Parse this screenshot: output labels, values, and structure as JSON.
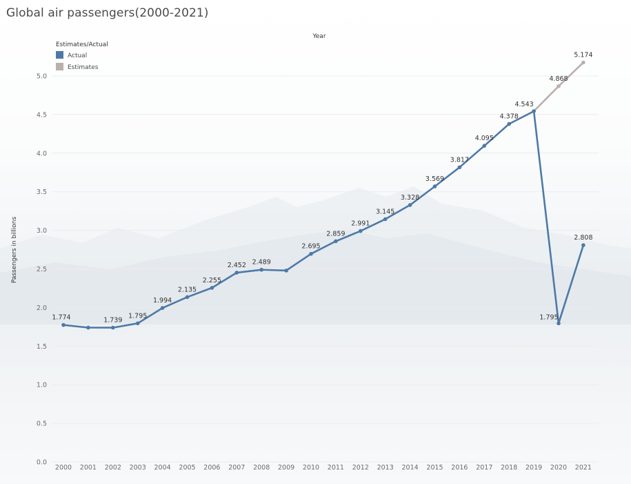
{
  "title": "Global air passengers(2000-2021)",
  "chart_data": {
    "type": "line",
    "title": "Global air passengers(2000-2021)",
    "xlabel": "Year",
    "ylabel": "Passengers in billions",
    "ylim": [
      0,
      5.3
    ],
    "yticks": [
      "0.0",
      "0.5",
      "1.0",
      "1.5",
      "2.0",
      "2.5",
      "3.0",
      "3.5",
      "4.0",
      "4.5",
      "5.0"
    ],
    "grid": true,
    "x": [
      "2000",
      "2001",
      "2002",
      "2003",
      "2004",
      "2005",
      "2006",
      "2007",
      "2008",
      "2009",
      "2010",
      "2011",
      "2012",
      "2013",
      "2014",
      "2015",
      "2016",
      "2017",
      "2018",
      "2019",
      "2020",
      "2021"
    ],
    "legend": {
      "title": "Estimates/Actual",
      "position": "top-left",
      "entries": [
        {
          "label": "Actual",
          "color": "#4e79a7"
        },
        {
          "label": "Estimates",
          "color": "#bab0ac"
        }
      ]
    },
    "series": [
      {
        "name": "Actual",
        "color": "#4e79a7",
        "points": [
          {
            "x": "2000",
            "y": 1.774,
            "label": "1.774"
          },
          {
            "x": "2001",
            "y": 1.74,
            "label": ""
          },
          {
            "x": "2002",
            "y": 1.739,
            "label": "1.739"
          },
          {
            "x": "2003",
            "y": 1.795,
            "label": "1.795"
          },
          {
            "x": "2004",
            "y": 1.994,
            "label": "1.994"
          },
          {
            "x": "2005",
            "y": 2.135,
            "label": "2.135"
          },
          {
            "x": "2006",
            "y": 2.255,
            "label": "2.255"
          },
          {
            "x": "2007",
            "y": 2.452,
            "label": "2.452"
          },
          {
            "x": "2008",
            "y": 2.489,
            "label": "2.489"
          },
          {
            "x": "2009",
            "y": 2.479,
            "label": ""
          },
          {
            "x": "2010",
            "y": 2.695,
            "label": "2.695"
          },
          {
            "x": "2011",
            "y": 2.859,
            "label": "2.859"
          },
          {
            "x": "2012",
            "y": 2.991,
            "label": "2.991"
          },
          {
            "x": "2013",
            "y": 3.145,
            "label": "3.145"
          },
          {
            "x": "2014",
            "y": 3.328,
            "label": "3.328"
          },
          {
            "x": "2015",
            "y": 3.569,
            "label": "3.569"
          },
          {
            "x": "2016",
            "y": 3.817,
            "label": "3.817"
          },
          {
            "x": "2017",
            "y": 4.095,
            "label": "4.095"
          },
          {
            "x": "2018",
            "y": 4.378,
            "label": "4.378"
          },
          {
            "x": "2019",
            "y": 4.543,
            "label": "4.543"
          },
          {
            "x": "2020",
            "y": 1.795,
            "label": "1.795"
          },
          {
            "x": "2021",
            "y": 2.808,
            "label": "2.808"
          }
        ]
      },
      {
        "name": "Estimates",
        "color": "#bab0ac",
        "points": [
          {
            "x": "2019",
            "y": 4.543,
            "label": ""
          },
          {
            "x": "2020",
            "y": 4.868,
            "label": "4.868"
          },
          {
            "x": "2021",
            "y": 5.174,
            "label": "5.174"
          }
        ]
      }
    ]
  }
}
